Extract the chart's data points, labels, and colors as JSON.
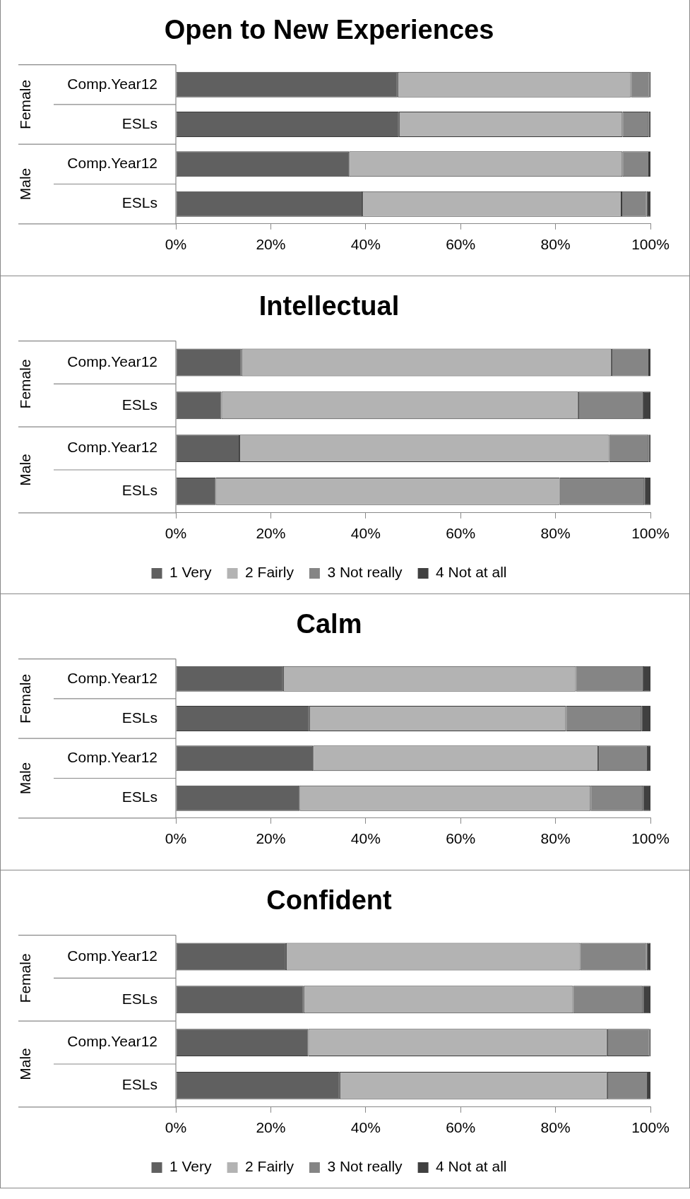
{
  "chart_data": [
    {
      "type": "bar",
      "orientation": "horizontal",
      "stacked": true,
      "title": "Open to New Experiences",
      "categories": [
        "Comp.Year12",
        "ESLs",
        "Comp.Year12",
        "ESLs"
      ],
      "annotations": [
        "Female",
        "Male"
      ],
      "xlim": [
        0,
        100
      ],
      "xticks": [
        {
          "value": 0,
          "label": "0%"
        },
        {
          "value": 20,
          "label": "20%"
        },
        {
          "value": 40,
          "label": "40%"
        },
        {
          "value": 60,
          "label": "60%"
        },
        {
          "value": 80,
          "label": "80%"
        },
        {
          "value": 100,
          "label": "100%"
        }
      ],
      "grid": false,
      "legend": false,
      "series": [
        {
          "color": "#606060",
          "values": [
            46.7,
            47.0,
            36.5,
            39.3
          ]
        },
        {
          "color": "#b3b3b3",
          "values": [
            49.2,
            47.1,
            57.6,
            54.6
          ]
        },
        {
          "color": "#858585",
          "values": [
            3.9,
            5.5,
            5.6,
            5.3
          ]
        },
        {
          "color": "#404040",
          "values": [
            0.2,
            0.4,
            0.3,
            0.8
          ]
        }
      ]
    },
    {
      "type": "bar",
      "orientation": "horizontal",
      "stacked": true,
      "title": "Intellectual",
      "categories": [
        "Comp.Year12",
        "ESLs",
        "Comp.Year12",
        "ESLs"
      ],
      "annotations": [
        "Female",
        "Male"
      ],
      "xlim": [
        0,
        100
      ],
      "xticks": [
        {
          "value": 0,
          "label": "0%"
        },
        {
          "value": 20,
          "label": "20%"
        },
        {
          "value": 40,
          "label": "40%"
        },
        {
          "value": 60,
          "label": "60%"
        },
        {
          "value": 80,
          "label": "80%"
        },
        {
          "value": 100,
          "label": "100%"
        }
      ],
      "grid": false,
      "legend": "bottom",
      "series": [
        {
          "name": "1 Very",
          "color": "#606060",
          "values": [
            13.8,
            9.6,
            13.4,
            8.4
          ]
        },
        {
          "name": "2 Fairly",
          "color": "#b3b3b3",
          "values": [
            78.0,
            75.2,
            77.9,
            72.5
          ]
        },
        {
          "name": "3 Not really",
          "color": "#858585",
          "values": [
            7.9,
            13.7,
            8.3,
            17.8
          ]
        },
        {
          "name": "4 Not at all",
          "color": "#404040",
          "values": [
            0.3,
            1.5,
            0.4,
            1.3
          ]
        }
      ]
    },
    {
      "type": "bar",
      "orientation": "horizontal",
      "stacked": true,
      "title": "Calm",
      "categories": [
        "Comp.Year12",
        "ESLs",
        "Comp.Year12",
        "ESLs"
      ],
      "annotations": [
        "Female",
        "Male"
      ],
      "xlim": [
        0,
        100
      ],
      "xticks": [
        {
          "value": 0,
          "label": "0%"
        },
        {
          "value": 20,
          "label": "20%"
        },
        {
          "value": 40,
          "label": "40%"
        },
        {
          "value": 60,
          "label": "60%"
        },
        {
          "value": 80,
          "label": "80%"
        },
        {
          "value": 100,
          "label": "100%"
        }
      ],
      "grid": false,
      "legend": false,
      "series": [
        {
          "color": "#606060",
          "values": [
            22.6,
            28.1,
            28.9,
            26.1
          ]
        },
        {
          "color": "#b3b3b3",
          "values": [
            61.7,
            54.1,
            60.1,
            61.3
          ]
        },
        {
          "color": "#858585",
          "values": [
            14.2,
            15.9,
            10.4,
            11.0
          ]
        },
        {
          "color": "#404040",
          "values": [
            1.5,
            1.9,
            0.6,
            1.6
          ]
        }
      ]
    },
    {
      "type": "bar",
      "orientation": "horizontal",
      "stacked": true,
      "title": "Confident",
      "categories": [
        "Comp.Year12",
        "ESLs",
        "Comp.Year12",
        "ESLs"
      ],
      "annotations": [
        "Female",
        "Male"
      ],
      "xlim": [
        0,
        100
      ],
      "xticks": [
        {
          "value": 0,
          "label": "0%"
        },
        {
          "value": 20,
          "label": "20%"
        },
        {
          "value": 40,
          "label": "40%"
        },
        {
          "value": 60,
          "label": "60%"
        },
        {
          "value": 80,
          "label": "80%"
        },
        {
          "value": 100,
          "label": "100%"
        }
      ],
      "grid": false,
      "legend": "bottom",
      "series": [
        {
          "name": "1 Very",
          "color": "#606060",
          "values": [
            23.2,
            26.9,
            27.9,
            34.5
          ]
        },
        {
          "name": "2 Fairly",
          "color": "#b3b3b3",
          "values": [
            62.0,
            56.8,
            63.0,
            56.4
          ]
        },
        {
          "name": "3 Not really",
          "color": "#858585",
          "values": [
            14.0,
            14.7,
            8.9,
            8.5
          ]
        },
        {
          "name": "4 Not at all",
          "color": "#404040",
          "values": [
            0.8,
            1.6,
            0.2,
            0.6
          ]
        }
      ]
    }
  ]
}
